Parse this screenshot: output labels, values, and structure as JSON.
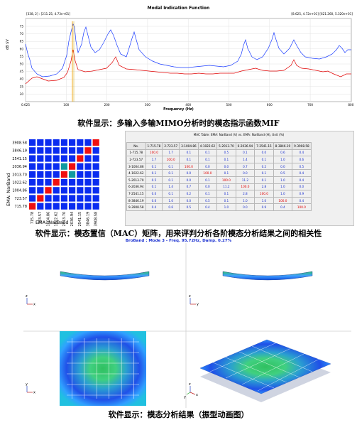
{
  "mif": {
    "title": "Modal Indication Function",
    "cursor_left": "[338, 2] : [211.25, 4.73e+01]",
    "cursor_right": "[8.625, 4.72e+01] [621.260, 5.320e+01]",
    "ylabel": "dB $V",
    "xlabel": "Frequency (Hz)",
    "yticks": [
      "75",
      "70",
      "65",
      "60",
      "55",
      "50",
      "45",
      "40",
      "35",
      "30"
    ],
    "xticks": [
      "0.625",
      "100",
      "200",
      "300",
      "400",
      "500",
      "600",
      "700",
      "800"
    ],
    "colors": {
      "blue": "#1a3cff",
      "red": "#e00000",
      "cursor": "#f0a000"
    }
  },
  "captions": {
    "mif": "软件显示：多输入多输MIMO分析时的模态指示函数MIF",
    "mac": "软件显示：模态置信（MAC）矩阵，用来评判分析各阶模态分析结果之间的相关性",
    "anim": "软件显示：模态分析结果（振型动画图）"
  },
  "mac_matrix": {
    "ylabel": "EMA: NarBand",
    "xlabel": "EMA: NarBand",
    "labels": [
      "715.78",
      "723.57",
      "1004.86",
      "1022.62",
      "2013.70",
      "2036.94",
      "2541.15",
      "3846.19",
      "3908.58"
    ],
    "colors": {
      "blue": "#0a2cf0",
      "red": "#f01010",
      "teal": "#109aa0"
    }
  },
  "mac_table": {
    "title": "MAC Table: EMA: NarBand (V) vs. EMA: NarBand (H), Unit (%)",
    "headers": [
      "No.",
      "1-715.78",
      "2-723.57",
      "3-1004.86",
      "4-1022.62",
      "5-2013.70",
      "6-2036.94",
      "7-2541.15",
      "8-3846.19",
      "9-3908.58"
    ],
    "rows": [
      {
        "label": "1-715.78",
        "cells": [
          "100.0",
          "1.7",
          "0.1",
          "0.1",
          "0.5",
          "0.1",
          "0.0",
          "0.6",
          "0.4"
        ]
      },
      {
        "label": "2-723.57",
        "cells": [
          "1.7",
          "100.0",
          "0.1",
          "0.1",
          "0.1",
          "1.4",
          "0.1",
          "1.0",
          "0.6"
        ]
      },
      {
        "label": "3-1004.86",
        "cells": [
          "0.1",
          "0.1",
          "100.0",
          "0.0",
          "0.0",
          "0.7",
          "0.2",
          "0.0",
          "0.5"
        ]
      },
      {
        "label": "4-1022.62",
        "cells": [
          "0.1",
          "0.1",
          "0.0",
          "100.0",
          "0.1",
          "0.0",
          "0.1",
          "0.5",
          "0.4"
        ]
      },
      {
        "label": "5-2013.70",
        "cells": [
          "0.5",
          "0.1",
          "0.0",
          "0.1",
          "100.0",
          "11.2",
          "0.1",
          "1.0",
          "0.4"
        ]
      },
      {
        "label": "6-2036.94",
        "cells": [
          "0.1",
          "1.4",
          "0.7",
          "0.0",
          "11.2",
          "100.0",
          "2.8",
          "1.0",
          "0.0"
        ]
      },
      {
        "label": "7-2541.15",
        "cells": [
          "0.0",
          "0.1",
          "0.2",
          "0.1",
          "0.1",
          "2.8",
          "100.0",
          "1.0",
          "0.9"
        ]
      },
      {
        "label": "8-3846.19",
        "cells": [
          "0.6",
          "1.0",
          "0.0",
          "0.5",
          "0.1",
          "1.0",
          "1.0",
          "100.0",
          "0.4"
        ]
      },
      {
        "label": "9-3908.58",
        "cells": [
          "0.4",
          "0.6",
          "0.5",
          "0.4",
          "1.0",
          "0.0",
          "0.9",
          "0.4",
          "100.0"
        ]
      }
    ]
  },
  "mode_shape": {
    "title": "BroBand : Mode  3 - Freq. 95.72Hz, Damp.  0.27%",
    "axes": [
      "x",
      "z",
      "z",
      "y",
      "y",
      "x",
      "y",
      "z",
      "x"
    ]
  }
}
